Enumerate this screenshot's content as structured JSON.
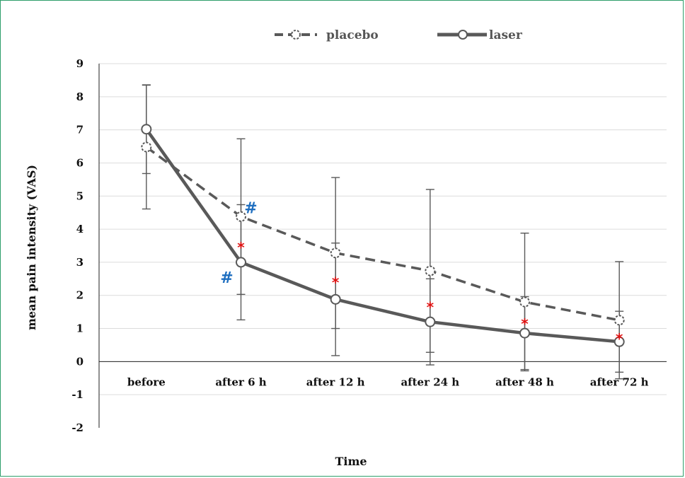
{
  "chart_data": {
    "type": "line",
    "xlabel": "Time",
    "ylabel": "mean pain intensity (VAS)",
    "categories": [
      "before",
      "after 6 h",
      "after 12 h",
      "after 24 h",
      "after 48 h",
      "after 72 h"
    ],
    "ylim": [
      -2,
      9
    ],
    "yticks": [
      "9",
      "8",
      "7",
      "6",
      "5",
      "4",
      "3",
      "2",
      "1",
      "0",
      "-1",
      "-2"
    ],
    "grid": true,
    "legend_position": "top",
    "series": [
      {
        "name": "placebo",
        "style": "dashed",
        "values": [
          6.48,
          4.38,
          3.28,
          2.74,
          1.8,
          1.25
        ],
        "error": [
          1.87,
          2.35,
          2.28,
          2.46,
          2.08,
          1.77
        ]
      },
      {
        "name": "laser",
        "style": "solid",
        "values": [
          7.02,
          3.0,
          1.88,
          1.2,
          0.86,
          0.6
        ],
        "error": [
          1.34,
          1.74,
          1.7,
          1.3,
          1.1,
          0.92
        ]
      }
    ],
    "annotations": [
      {
        "text": "#",
        "category": "after 6 h",
        "y": 4.65,
        "side": "right",
        "color": "#1f6fc0"
      },
      {
        "text": "#",
        "category": "after 6 h",
        "y": 2.55,
        "side": "left",
        "color": "#1f6fc0"
      },
      {
        "text": "*",
        "category": "after 6 h",
        "y": 3.55,
        "side": "center",
        "color": "#e01010"
      },
      {
        "text": "*",
        "category": "after 12 h",
        "y": 2.5,
        "side": "center",
        "color": "#e01010"
      },
      {
        "text": "*",
        "category": "after 24 h",
        "y": 1.75,
        "side": "center",
        "color": "#e01010"
      },
      {
        "text": "*",
        "category": "after 48 h",
        "y": 1.25,
        "side": "center",
        "color": "#e01010"
      },
      {
        "text": "*",
        "category": "after 72 h",
        "y": 0.8,
        "side": "center",
        "color": "#e01010"
      }
    ],
    "colors": {
      "line": "#595959",
      "grid": "#dcdcdc",
      "star": "#e01010",
      "hash": "#1f6fc0"
    }
  }
}
